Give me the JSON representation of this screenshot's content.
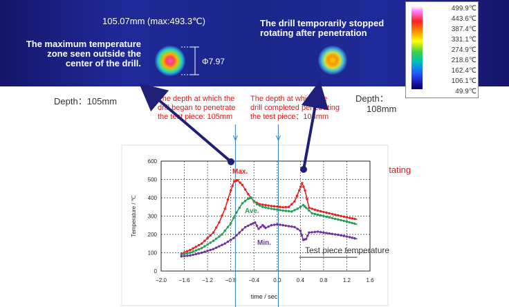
{
  "thermal": {
    "left_caption": "105.07mm (max:493.3℃)",
    "left_note_line1": "The maximum temperature",
    "left_note_line2": "zone seen outside the",
    "left_note_line3": "center of the drill.",
    "diameter_label": "Φ7.97",
    "right_note_line1": "The drill temporarily stopped",
    "right_note_line2": "rotating after penetration"
  },
  "scale_legend": {
    "ticks": [
      "499.9℃",
      "443.6℃",
      "387.4℃",
      "331.1℃",
      "274.9℃",
      "218.6℃",
      "162.4℃",
      "106.1℃",
      "49.9℃"
    ]
  },
  "annotations": {
    "depth_left": "Depth：105mm",
    "depth_right_line1": "Depth：",
    "depth_right_line2": "108mm",
    "penetrate_begin_line1": "The depth at which the",
    "penetrate_begin_line2": "drill began to penetrate",
    "penetrate_begin_line3": "the test piece: 105mm",
    "penetrate_end_line1": "The depth at which the",
    "penetrate_end_line2": "drill completed penetrating",
    "penetrate_end_line3": "the test piece：108mm",
    "drill_stopped": "The drill stopped rotating",
    "test_piece": "Test piece temperature"
  },
  "colors": {
    "max": "#e82020",
    "ave": "#20a050",
    "min": "#7030a0",
    "annotation": "#e01818",
    "arrow": "#1f1f7a",
    "marker_line": "#2f7fc0"
  },
  "chart_data": {
    "type": "line",
    "title": "",
    "xlabel": "time / sec",
    "ylabel": "Temperature / ℃",
    "xlim": [
      -2.0,
      1.6
    ],
    "ylim": [
      0,
      600
    ],
    "xticks": [
      -2.0,
      -1.6,
      -1.2,
      -0.8,
      -0.4,
      0.0,
      0.4,
      0.8,
      1.2,
      1.6
    ],
    "yticks": [
      0,
      100,
      200,
      300,
      400,
      500,
      600
    ],
    "xtick_labels": [
      "−2.0",
      "−1.6",
      "−1.2",
      "−0.8",
      "−0.4",
      "0.0",
      "0.4",
      "0.8",
      "1.2",
      "1.6"
    ],
    "ytick_labels": [
      "0",
      "100",
      "200",
      "300",
      "400",
      "500",
      "600"
    ],
    "grid": true,
    "vertical_markers": [
      -0.72,
      0.02
    ],
    "series": [
      {
        "name": "Max.",
        "points": [
          [
            -1.65,
            95
          ],
          [
            -1.5,
            115
          ],
          [
            -1.3,
            150
          ],
          [
            -1.1,
            210
          ],
          [
            -1.0,
            265
          ],
          [
            -0.9,
            340
          ],
          [
            -0.8,
            440
          ],
          [
            -0.74,
            490
          ],
          [
            -0.68,
            495
          ],
          [
            -0.6,
            470
          ],
          [
            -0.5,
            420
          ],
          [
            -0.4,
            380
          ],
          [
            -0.3,
            365
          ],
          [
            -0.2,
            360
          ],
          [
            -0.1,
            355
          ],
          [
            0.0,
            352
          ],
          [
            0.1,
            348
          ],
          [
            0.2,
            350
          ],
          [
            0.3,
            380
          ],
          [
            0.38,
            440
          ],
          [
            0.43,
            480
          ],
          [
            0.48,
            440
          ],
          [
            0.55,
            345
          ],
          [
            0.7,
            330
          ],
          [
            0.9,
            315
          ],
          [
            1.1,
            300
          ],
          [
            1.25,
            290
          ],
          [
            1.38,
            282
          ]
        ]
      },
      {
        "name": "Ave.",
        "points": [
          [
            -1.65,
            90
          ],
          [
            -1.5,
            100
          ],
          [
            -1.3,
            125
          ],
          [
            -1.1,
            165
          ],
          [
            -0.95,
            200
          ],
          [
            -0.8,
            260
          ],
          [
            -0.7,
            320
          ],
          [
            -0.6,
            370
          ],
          [
            -0.5,
            395
          ],
          [
            -0.45,
            400
          ],
          [
            -0.35,
            365
          ],
          [
            -0.25,
            350
          ],
          [
            -0.1,
            340
          ],
          [
            0.0,
            335
          ],
          [
            0.1,
            330
          ],
          [
            0.25,
            325
          ],
          [
            0.35,
            340
          ],
          [
            0.45,
            360
          ],
          [
            0.5,
            345
          ],
          [
            0.6,
            315
          ],
          [
            0.8,
            300
          ],
          [
            1.0,
            285
          ],
          [
            1.2,
            270
          ],
          [
            1.38,
            255
          ]
        ]
      },
      {
        "name": "Min.",
        "points": [
          [
            -1.65,
            80
          ],
          [
            -1.5,
            85
          ],
          [
            -1.3,
            100
          ],
          [
            -1.1,
            120
          ],
          [
            -0.9,
            150
          ],
          [
            -0.75,
            180
          ],
          [
            -0.65,
            210
          ],
          [
            -0.55,
            240
          ],
          [
            -0.45,
            255
          ],
          [
            -0.38,
            265
          ],
          [
            -0.32,
            230
          ],
          [
            -0.25,
            250
          ],
          [
            -0.2,
            235
          ],
          [
            -0.1,
            250
          ],
          [
            0.0,
            255
          ],
          [
            0.1,
            250
          ],
          [
            0.2,
            245
          ],
          [
            0.3,
            240
          ],
          [
            0.4,
            220
          ],
          [
            0.45,
            170
          ],
          [
            0.5,
            175
          ],
          [
            0.55,
            210
          ],
          [
            0.7,
            215
          ],
          [
            0.9,
            205
          ],
          [
            1.1,
            195
          ],
          [
            1.25,
            185
          ],
          [
            1.38,
            175
          ]
        ]
      }
    ],
    "series_labels": [
      "Max.",
      "Ave.",
      "Min."
    ]
  }
}
